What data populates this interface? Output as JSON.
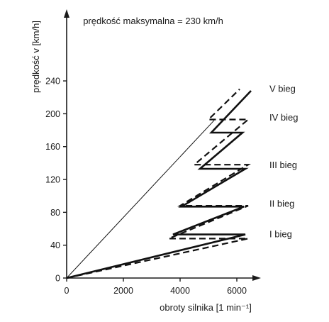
{
  "chart_data": {
    "type": "line",
    "title": "prędkość maksymalna = 230 km/h",
    "xlabel": "obroty silnika [1 min⁻¹]",
    "ylabel": "prędkość v [km/h]",
    "xlim": [
      0,
      6500
    ],
    "ylim": [
      0,
      245
    ],
    "xticks": [
      "0",
      "2000",
      "4000",
      "6000"
    ],
    "yticks": [
      "0",
      "40",
      "80",
      "120",
      "160",
      "200",
      "240"
    ],
    "grid": false,
    "gear_labels": [
      {
        "text": "I bieg",
        "x": 7150,
        "y": 54
      },
      {
        "text": "II bieg",
        "x": 7150,
        "y": 91
      },
      {
        "text": "III bieg",
        "x": 7150,
        "y": 138
      },
      {
        "text": "IV bieg",
        "x": 7150,
        "y": 196
      },
      {
        "text": "V bieg",
        "x": 7150,
        "y": 231
      }
    ],
    "series": [
      {
        "style": "solid",
        "points": [
          [
            0,
            0
          ],
          [
            6300,
            53
          ],
          [
            3750,
            53
          ],
          [
            6250,
            87
          ],
          [
            4050,
            87
          ],
          [
            6300,
            133
          ],
          [
            4700,
            133
          ],
          [
            6200,
            177
          ],
          [
            5100,
            177
          ],
          [
            6500,
            228
          ]
        ]
      },
      {
        "style": "dashed",
        "points": [
          [
            0,
            0
          ],
          [
            6400,
            48
          ],
          [
            3600,
            48
          ],
          [
            6400,
            88
          ],
          [
            4000,
            88
          ],
          [
            6400,
            138
          ],
          [
            4500,
            138
          ],
          [
            6400,
            193
          ],
          [
            5000,
            193
          ],
          [
            6100,
            230
          ]
        ]
      },
      {
        "style": "thin",
        "points": [
          [
            0,
            0
          ],
          [
            5200,
            192
          ]
        ]
      }
    ]
  }
}
